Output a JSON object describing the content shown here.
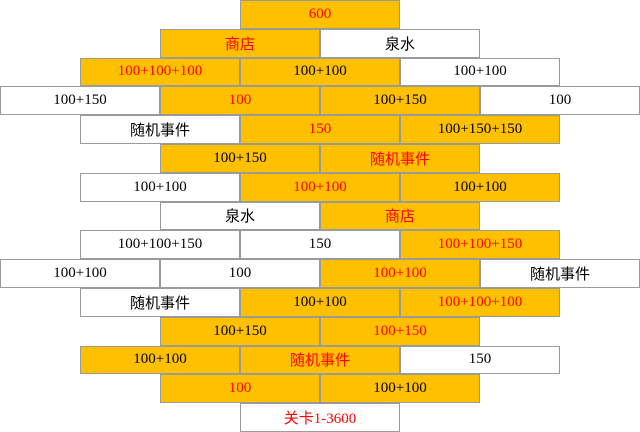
{
  "grid": {
    "rows": [
      [
        {
          "text": "600"
        }
      ],
      [
        {
          "text": "商店"
        },
        {
          "text": "泉水"
        }
      ],
      [
        {
          "text": "100+100+100"
        },
        {
          "text": "100+100"
        },
        {
          "text": "100+100"
        }
      ],
      [
        {
          "text": "100+150"
        },
        {
          "text": "100"
        },
        {
          "text": "100+150"
        },
        {
          "text": "100"
        }
      ],
      [
        {
          "text": "随机事件"
        },
        {
          "text": "150"
        },
        {
          "text": "100+150+150"
        }
      ],
      [
        {
          "text": "100+150"
        },
        {
          "text": "随机事件"
        }
      ],
      [
        {
          "text": "100+100"
        },
        {
          "text": "100+100"
        },
        {
          "text": "100+100"
        }
      ],
      [
        {
          "text": "泉水"
        },
        {
          "text": "商店"
        }
      ],
      [
        {
          "text": "100+100+150"
        },
        {
          "text": "150"
        },
        {
          "text": "100+100+150"
        }
      ],
      [
        {
          "text": "100+100"
        },
        {
          "text": "100"
        },
        {
          "text": "100+100"
        },
        {
          "text": "随机事件"
        }
      ],
      [
        {
          "text": "随机事件"
        },
        {
          "text": "100+100"
        },
        {
          "text": "100+100+100"
        }
      ],
      [
        {
          "text": "100+150"
        },
        {
          "text": "100+150"
        }
      ],
      [
        {
          "text": "100+100"
        },
        {
          "text": "随机事件"
        },
        {
          "text": "150"
        }
      ],
      [
        {
          "text": "100"
        },
        {
          "text": "100+100"
        }
      ],
      [
        {
          "text": "关卡1-3600"
        }
      ]
    ]
  }
}
